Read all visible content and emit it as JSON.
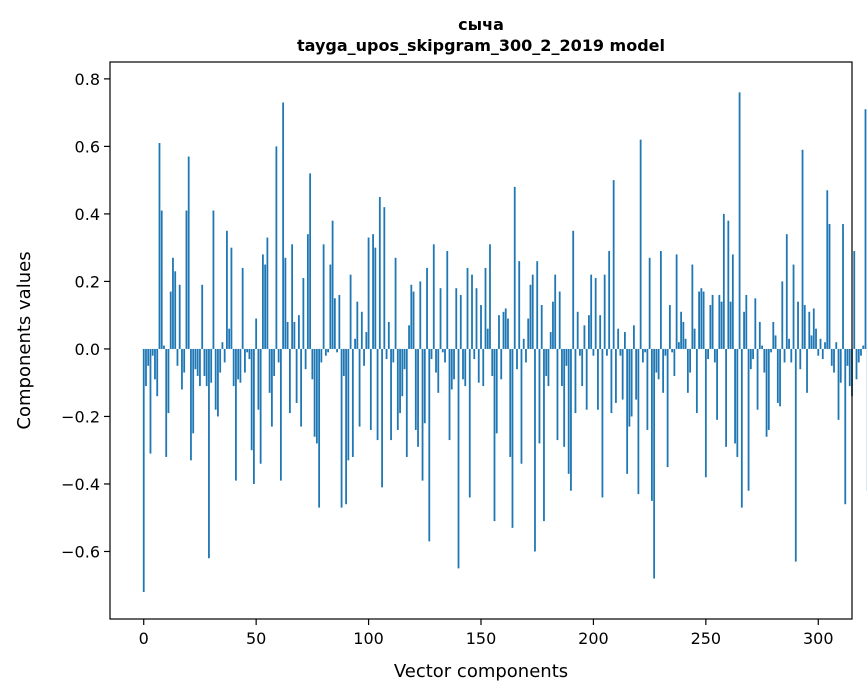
{
  "chart_data": {
    "type": "bar",
    "title": "сыча",
    "subtitle": "tayga_upos_skipgram_300_2_2019 model",
    "xlabel": "Vector components",
    "ylabel": "Components values",
    "xlim": [
      -15,
      315
    ],
    "ylim": [
      -0.8,
      0.85
    ],
    "xticks": [
      0,
      50,
      100,
      150,
      200,
      250,
      300
    ],
    "xtick_labels": [
      "0",
      "50",
      "100",
      "150",
      "200",
      "250",
      "300"
    ],
    "yticks": [
      -0.6,
      -0.4,
      -0.2,
      0.0,
      0.2,
      0.4,
      0.6,
      0.8
    ],
    "ytick_labels": [
      "−0.6",
      "−0.4",
      "−0.2",
      "0.0",
      "0.2",
      "0.4",
      "0.6",
      "0.8"
    ],
    "bar_color": "#1f77b4",
    "grid": false,
    "values": [
      -0.72,
      -0.11,
      -0.05,
      -0.31,
      -0.02,
      -0.09,
      -0.14,
      0.61,
      0.41,
      0.01,
      -0.32,
      -0.19,
      0.17,
      0.27,
      0.23,
      -0.05,
      0.19,
      -0.12,
      -0.07,
      0.41,
      0.57,
      -0.33,
      -0.25,
      -0.06,
      -0.08,
      -0.11,
      0.19,
      -0.08,
      -0.11,
      -0.62,
      -0.1,
      0.41,
      -0.18,
      -0.2,
      -0.07,
      0.02,
      -0.04,
      0.35,
      0.06,
      0.3,
      -0.11,
      -0.39,
      -0.09,
      -0.1,
      0.24,
      -0.07,
      -0.01,
      -0.03,
      -0.3,
      -0.4,
      0.09,
      -0.18,
      -0.34,
      0.28,
      0.25,
      0.33,
      -0.13,
      -0.23,
      -0.08,
      0.6,
      -0.04,
      -0.39,
      0.73,
      0.27,
      0.08,
      -0.19,
      0.31,
      0.08,
      -0.16,
      0.1,
      -0.23,
      0.21,
      -0.06,
      0.34,
      0.52,
      -0.09,
      -0.26,
      -0.28,
      -0.47,
      -0.04,
      0.31,
      -0.02,
      -0.01,
      0.25,
      0.38,
      0.15,
      -0.01,
      0.16,
      -0.47,
      -0.08,
      -0.46,
      -0.33,
      0.22,
      -0.32,
      0.03,
      0.14,
      -0.23,
      0.11,
      -0.05,
      0.05,
      0.33,
      -0.24,
      0.34,
      0.3,
      -0.27,
      0.45,
      -0.41,
      0.42,
      -0.03,
      0.08,
      -0.27,
      -0.04,
      0.27,
      -0.24,
      -0.19,
      -0.14,
      -0.06,
      -0.32,
      0.07,
      0.19,
      0.17,
      -0.24,
      -0.29,
      0.2,
      -0.39,
      -0.22,
      0.24,
      -0.57,
      -0.03,
      0.31,
      -0.07,
      -0.13,
      0.18,
      -0.01,
      -0.04,
      0.29,
      -0.27,
      -0.12,
      -0.09,
      0.18,
      -0.65,
      0.16,
      -0.09,
      -0.11,
      0.24,
      -0.44,
      0.22,
      -0.03,
      0.18,
      -0.1,
      0.13,
      -0.11,
      0.24,
      0.06,
      0.31,
      -0.08,
      -0.51,
      -0.25,
      0.1,
      -0.09,
      0.11,
      0.12,
      0.09,
      -0.32,
      -0.53,
      0.48,
      -0.06,
      0.26,
      -0.34,
      0.03,
      -0.04,
      0.09,
      0.19,
      0.22,
      -0.6,
      0.26,
      -0.28,
      0.13,
      -0.51,
      -0.08,
      -0.11,
      0.05,
      0.14,
      0.22,
      -0.27,
      0.17,
      -0.11,
      -0.29,
      -0.05,
      -0.37,
      -0.42,
      0.35,
      -0.19,
      0.11,
      -0.02,
      -0.11,
      0.07,
      -0.18,
      0.1,
      0.22,
      -0.02,
      0.21,
      -0.18,
      0.1,
      -0.44,
      0.22,
      -0.02,
      0.29,
      -0.19,
      0.5,
      -0.16,
      0.06,
      -0.02,
      -0.15,
      0.05,
      -0.37,
      -0.23,
      -0.2,
      0.07,
      -0.15,
      -0.43,
      0.62,
      -0.04,
      -0.01,
      -0.24,
      0.27,
      -0.45,
      -0.68,
      -0.07,
      -0.09,
      0.29,
      -0.13,
      -0.02,
      -0.35,
      0.13,
      -0.01,
      -0.08,
      0.28,
      0.02,
      0.11,
      0.08,
      0.03,
      -0.13,
      -0.07,
      0.25,
      0.06,
      -0.19,
      0.17,
      0.18,
      0.17,
      -0.38,
      -0.03,
      0.13,
      0.16,
      -0.04,
      -0.21,
      0.16,
      0.14,
      0.4,
      -0.29,
      0.38,
      0.14,
      0.28,
      -0.28,
      -0.32,
      0.76,
      -0.47,
      0.11,
      0.16,
      -0.42,
      -0.06,
      -0.03,
      0.15,
      -0.18,
      0.08,
      0.01,
      -0.07,
      -0.26,
      -0.24,
      -0.01,
      0.08,
      0.04,
      -0.16,
      -0.17,
      0.2,
      -0.04,
      0.34,
      0.03,
      -0.04,
      0.25,
      -0.63,
      0.14,
      -0.06,
      0.59,
      0.13,
      -0.13,
      0.11,
      0.04,
      0.12,
      0.06,
      -0.02,
      0.03,
      -0.03,
      0.02,
      0.47,
      0.37,
      -0.05,
      -0.07,
      0.02,
      -0.21,
      -0.1,
      0.37,
      -0.46,
      -0.05,
      -0.11,
      -0.14,
      0.29,
      -0.09,
      -0.04,
      -0.02,
      0.01,
      0.71,
      -0.42
    ]
  }
}
